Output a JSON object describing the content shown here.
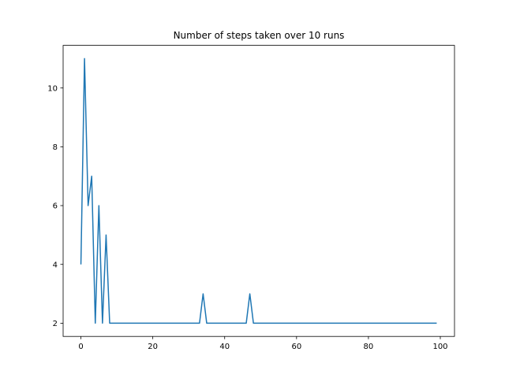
{
  "chart_data": {
    "type": "line",
    "title": "Number of steps taken over 10 runs",
    "xlabel": "",
    "ylabel": "",
    "xlim": [
      -4.95,
      103.95
    ],
    "ylim": [
      1.55,
      11.45
    ],
    "x_ticks": [
      0,
      20,
      40,
      60,
      80,
      100
    ],
    "y_ticks": [
      2,
      4,
      6,
      8,
      10
    ],
    "x_tick_labels": [
      "0",
      "20",
      "40",
      "60",
      "80",
      "100"
    ],
    "y_tick_labels": [
      "2",
      "4",
      "6",
      "8",
      "10"
    ],
    "grid": false,
    "legend": "none",
    "series": [
      {
        "name": "",
        "color": "#1f77b4",
        "x": [
          0,
          1,
          2,
          3,
          4,
          5,
          6,
          7,
          8,
          9,
          10,
          11,
          12,
          13,
          14,
          15,
          16,
          17,
          18,
          19,
          20,
          21,
          22,
          23,
          24,
          25,
          26,
          27,
          28,
          29,
          30,
          31,
          32,
          33,
          34,
          35,
          36,
          37,
          38,
          39,
          40,
          41,
          42,
          43,
          44,
          45,
          46,
          47,
          48,
          49,
          50,
          51,
          52,
          53,
          54,
          55,
          56,
          57,
          58,
          59,
          60,
          61,
          62,
          63,
          64,
          65,
          66,
          67,
          68,
          69,
          70,
          71,
          72,
          73,
          74,
          75,
          76,
          77,
          78,
          79,
          80,
          81,
          82,
          83,
          84,
          85,
          86,
          87,
          88,
          89,
          90,
          91,
          92,
          93,
          94,
          95,
          96,
          97,
          98,
          99
        ],
        "values": [
          4,
          11,
          6,
          7,
          2,
          6,
          2,
          5,
          2,
          2,
          2,
          2,
          2,
          2,
          2,
          2,
          2,
          2,
          2,
          2,
          2,
          2,
          2,
          2,
          2,
          2,
          2,
          2,
          2,
          2,
          2,
          2,
          2,
          2,
          3,
          2,
          2,
          2,
          2,
          2,
          2,
          2,
          2,
          2,
          2,
          2,
          2,
          3,
          2,
          2,
          2,
          2,
          2,
          2,
          2,
          2,
          2,
          2,
          2,
          2,
          2,
          2,
          2,
          2,
          2,
          2,
          2,
          2,
          2,
          2,
          2,
          2,
          2,
          2,
          2,
          2,
          2,
          2,
          2,
          2,
          2,
          2,
          2,
          2,
          2,
          2,
          2,
          2,
          2,
          2,
          2,
          2,
          2,
          2,
          2,
          2,
          2,
          2,
          2,
          2
        ]
      }
    ]
  }
}
